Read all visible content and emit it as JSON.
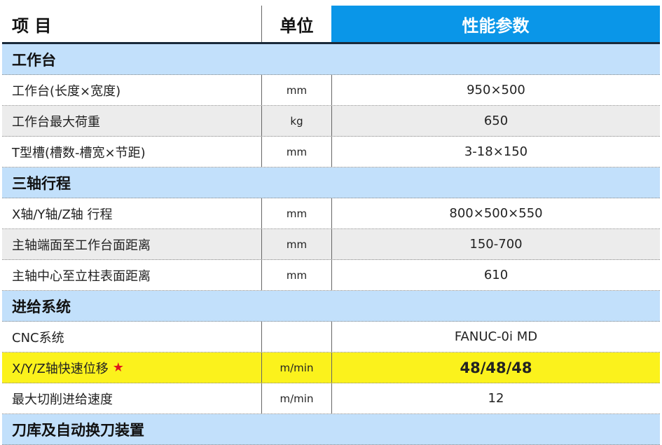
{
  "header": {
    "item": "项 目",
    "unit": "单位",
    "params": "性能参数"
  },
  "sections": [
    {
      "title": "工作台",
      "rows": [
        {
          "item": "工作台(长度×宽度)",
          "unit": "mm",
          "value": "950×500"
        },
        {
          "item": "工作台最大荷重",
          "unit": "kg",
          "value": "650"
        },
        {
          "item": "T型槽(槽数-槽宽×节距)",
          "unit": "mm",
          "value": "3-18×150"
        }
      ]
    },
    {
      "title": "三轴行程",
      "rows": [
        {
          "item": "X轴/Y轴/Z轴 行程",
          "unit": "mm",
          "value": "800×500×550"
        },
        {
          "item": "主轴端面至工作台面距离",
          "unit": "mm",
          "value": "150-700"
        },
        {
          "item": "主轴中心至立柱表面距离",
          "unit": "mm",
          "value": "610"
        }
      ]
    },
    {
      "title": "进给系统",
      "rows": [
        {
          "item": "CNC系统",
          "unit": "",
          "value": "FANUC-0i MD"
        },
        {
          "item": "X/Y/Z轴快速位移",
          "unit": "m/min",
          "value": "48/48/48",
          "star": "★"
        },
        {
          "item": "最大切削进给速度",
          "unit": "m/min",
          "value": "12"
        }
      ]
    },
    {
      "title": "刀库及自动换刀装置",
      "rows": []
    }
  ],
  "colors": {
    "header_accent": "#0a96e8",
    "section_bg": "#c2e0fb",
    "highlight": "#fbf21c",
    "star": "#e0141c"
  }
}
